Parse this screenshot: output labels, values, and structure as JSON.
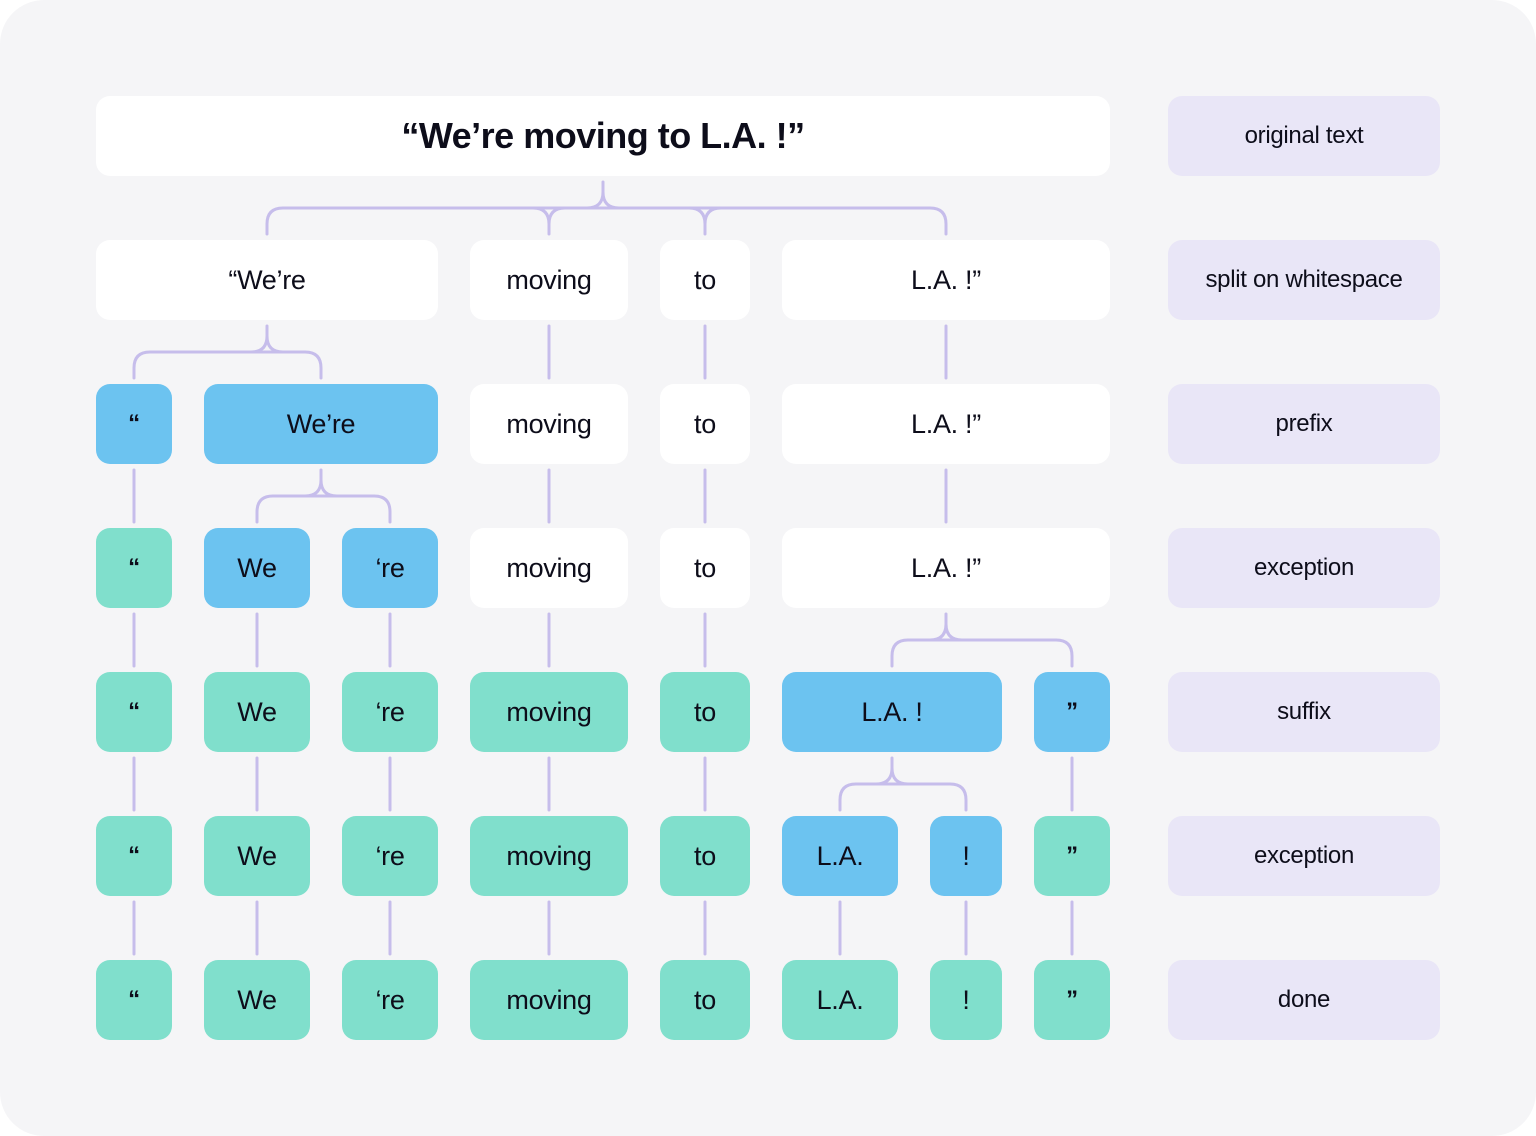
{
  "colors": {
    "background": "#f5f5f7",
    "box_plain": "#ffffff",
    "box_changed": "#6cc3f0",
    "box_final": "#80dfcc",
    "label_bg": "#e9e6f7",
    "connector": "#c6bdeb"
  },
  "rows": [
    {
      "label": "original text",
      "tokens": [
        "“We’re moving to L.A. !”"
      ]
    },
    {
      "label": "split on whitespace",
      "tokens": [
        "“We’re",
        "moving",
        "to",
        "L.A. !”"
      ]
    },
    {
      "label": "prefix",
      "tokens": [
        "“",
        "We’re",
        "moving",
        "to",
        "L.A. !”"
      ]
    },
    {
      "label": "exception",
      "tokens": [
        "“",
        "We",
        "‘re",
        "moving",
        "to",
        "L.A. !”"
      ]
    },
    {
      "label": "suffix",
      "tokens": [
        "“",
        "We",
        "‘re",
        "moving",
        "to",
        "L.A. !",
        "”"
      ]
    },
    {
      "label": "exception",
      "tokens": [
        "“",
        "We",
        "‘re",
        "moving",
        "to",
        "L.A.",
        "!",
        "”"
      ]
    },
    {
      "label": "done",
      "tokens": [
        "“",
        "We",
        "‘re",
        "moving",
        "to",
        "L.A.",
        "!",
        "”"
      ]
    }
  ]
}
